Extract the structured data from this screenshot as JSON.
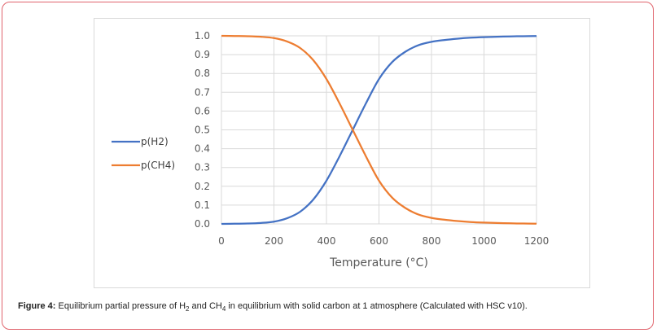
{
  "chart_data": {
    "type": "line",
    "title": "",
    "xlabel": "Temperature (°C)",
    "ylabel": "",
    "xlim": [
      0,
      1200
    ],
    "ylim": [
      0,
      1.0
    ],
    "xticks": [
      "0",
      "200",
      "400",
      "600",
      "800",
      "1000",
      "1200"
    ],
    "yticks": [
      "0.0",
      "0.1",
      "0.2",
      "0.3",
      "0.4",
      "0.5",
      "0.6",
      "0.7",
      "0.8",
      "0.9",
      "1.0"
    ],
    "grid": true,
    "legend_position": "left",
    "x": [
      0,
      50,
      100,
      150,
      200,
      250,
      300,
      350,
      400,
      450,
      500,
      550,
      600,
      650,
      700,
      750,
      800,
      850,
      900,
      950,
      1000,
      1050,
      1100,
      1150,
      1200
    ],
    "series": [
      {
        "name": "p(H2)",
        "color": "#4472c4",
        "values": [
          0.0,
          0.001,
          0.002,
          0.005,
          0.012,
          0.03,
          0.065,
          0.13,
          0.23,
          0.36,
          0.5,
          0.64,
          0.77,
          0.86,
          0.915,
          0.95,
          0.968,
          0.978,
          0.985,
          0.99,
          0.993,
          0.995,
          0.997,
          0.998,
          0.999
        ]
      },
      {
        "name": "p(CH4)",
        "color": "#ed7d31",
        "values": [
          1.0,
          0.999,
          0.998,
          0.995,
          0.988,
          0.97,
          0.935,
          0.87,
          0.77,
          0.64,
          0.5,
          0.36,
          0.23,
          0.14,
          0.085,
          0.05,
          0.032,
          0.022,
          0.015,
          0.01,
          0.007,
          0.005,
          0.003,
          0.002,
          0.001
        ]
      }
    ]
  },
  "caption": {
    "label": "Figure 4:",
    "text_a": " Equilibrium partial pressure of H",
    "sub_a": "2",
    "text_b": " and CH",
    "sub_b": "4",
    "text_c": " in equilibrium with solid carbon at 1 atmosphere (Calculated with HSC v10)."
  }
}
